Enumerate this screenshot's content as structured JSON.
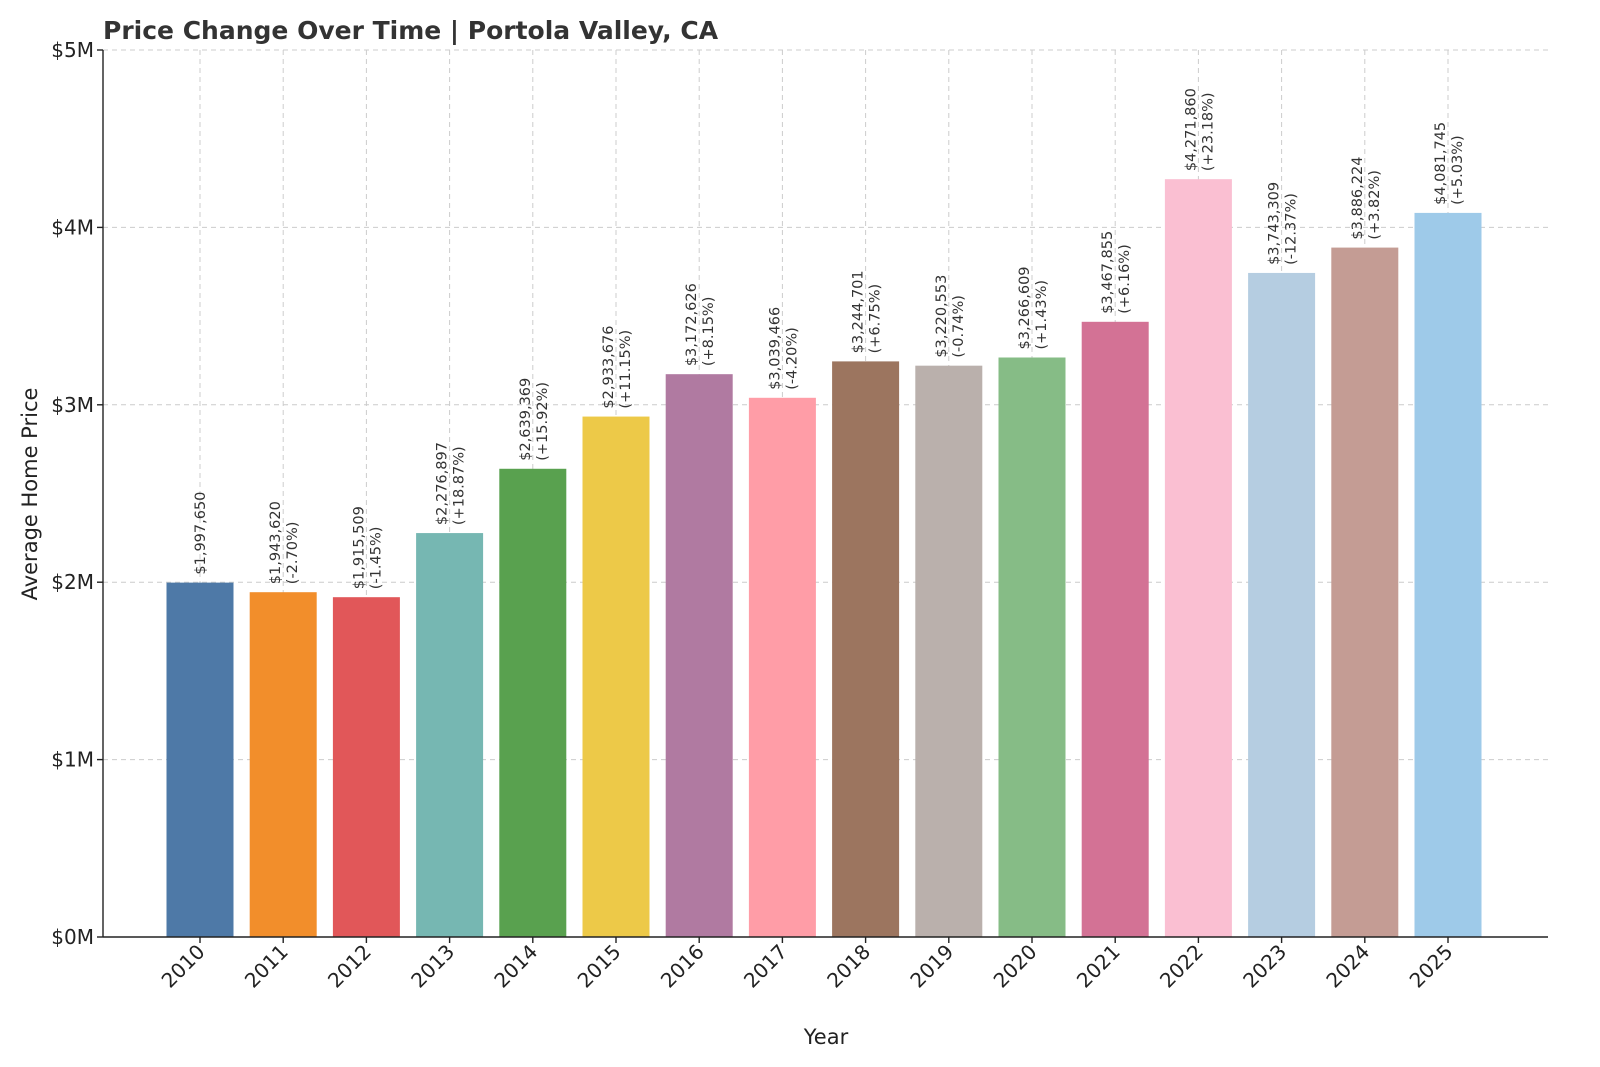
{
  "chart_data": {
    "type": "bar",
    "title": "Price Change Over Time | Portola Valley, CA",
    "xlabel": "Year",
    "ylabel": "Average Home Price",
    "ylim": [
      0,
      5000000
    ],
    "yticks": [
      {
        "value": 0,
        "label": "$0M"
      },
      {
        "value": 1000000,
        "label": "$1M"
      },
      {
        "value": 2000000,
        "label": "$2M"
      },
      {
        "value": 3000000,
        "label": "$3M"
      },
      {
        "value": 4000000,
        "label": "$4M"
      },
      {
        "value": 5000000,
        "label": "$5M"
      }
    ],
    "grid": true,
    "categories": [
      "2010",
      "2011",
      "2012",
      "2013",
      "2014",
      "2015",
      "2016",
      "2017",
      "2018",
      "2019",
      "2020",
      "2021",
      "2022",
      "2023",
      "2024",
      "2025"
    ],
    "values": [
      1997650,
      1943620,
      1915509,
      2276897,
      2639369,
      2933676,
      3172626,
      3039466,
      3244701,
      3220553,
      3266609,
      3467855,
      4271860,
      3743309,
      3886224,
      4081745
    ],
    "price_labels": [
      "$1,997,650",
      "$1,943,620",
      "$1,915,509",
      "$2,276,897",
      "$2,639,369",
      "$2,933,676",
      "$3,172,626",
      "$3,039,466",
      "$3,244,701",
      "$3,220,553",
      "$3,266,609",
      "$3,467,855",
      "$4,271,860",
      "$3,743,309",
      "$3,886,224",
      "$4,081,745"
    ],
    "change_labels": [
      "",
      "(-2.70%)",
      "(-1.45%)",
      "(+18.87%)",
      "(+15.92%)",
      "(+11.15%)",
      "(+8.15%)",
      "(-4.20%)",
      "(+6.75%)",
      "(-0.74%)",
      "(+1.43%)",
      "(+6.16%)",
      "(+23.18%)",
      "(-12.37%)",
      "(+3.82%)",
      "(+5.03%)"
    ],
    "colors": [
      "#4e79a7",
      "#f28e2b",
      "#e15759",
      "#76b7b2",
      "#59a14f",
      "#edc948",
      "#b07aa1",
      "#ff9da7",
      "#9c755f",
      "#bab0ac",
      "#86bc86",
      "#d37295",
      "#fabfd2",
      "#b5cde1",
      "#c49c94",
      "#9ecae9"
    ]
  }
}
